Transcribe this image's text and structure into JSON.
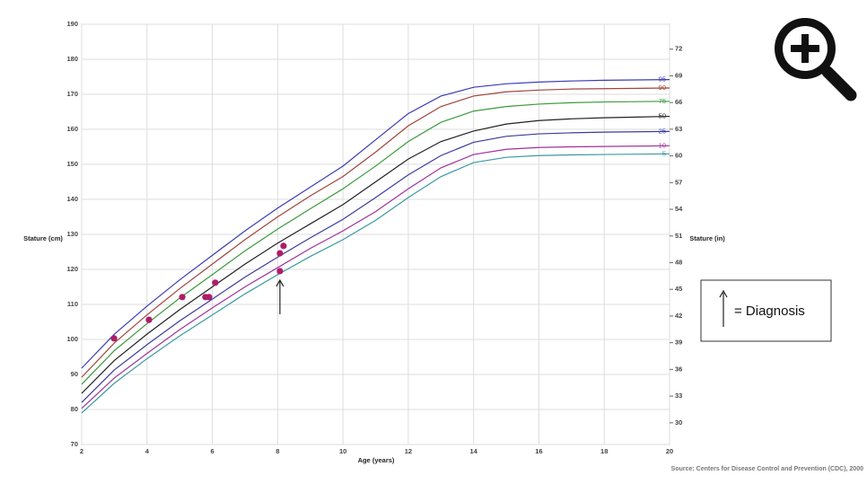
{
  "chart_data": {
    "type": "line",
    "y_label": "Stature (cm)",
    "y2_label": "Stature (in)",
    "x_label": "Age (years)",
    "xlim": [
      2,
      20
    ],
    "xticks": [
      2,
      4,
      6,
      8,
      10,
      12,
      14,
      16,
      18,
      20
    ],
    "ylim": [
      70,
      190
    ],
    "yticks": [
      70,
      80,
      90,
      100,
      110,
      120,
      130,
      140,
      150,
      160,
      170,
      180,
      190
    ],
    "y2lim": [
      27.56,
      74.8
    ],
    "y2ticks": [
      30,
      33,
      36,
      39,
      42,
      45,
      48,
      51,
      54,
      57,
      60,
      63,
      66,
      69,
      72
    ],
    "grid": true,
    "x": [
      2,
      3,
      4,
      5,
      6,
      7,
      8,
      9,
      10,
      11,
      12,
      13,
      14,
      15,
      16,
      17,
      18,
      19,
      20
    ],
    "series": [
      {
        "name": "95",
        "color": "#3b3bb8",
        "values": [
          91.8,
          101.5,
          109.5,
          117,
          124,
          131,
          137.5,
          143.5,
          149.5,
          157,
          164.5,
          169.5,
          172,
          173,
          173.5,
          173.8,
          174,
          174.1,
          174.2
        ]
      },
      {
        "name": "90",
        "color": "#a0443c",
        "values": [
          89.2,
          99,
          107,
          114.5,
          121.5,
          128.5,
          135,
          141,
          146.5,
          153.5,
          161,
          166.5,
          169.5,
          170.7,
          171.2,
          171.5,
          171.6,
          171.7,
          171.8
        ]
      },
      {
        "name": "75",
        "color": "#3c9a3c",
        "values": [
          87.2,
          96.8,
          104.5,
          111.8,
          118.5,
          125.3,
          131.5,
          137.3,
          143,
          149.5,
          156.5,
          162,
          165.2,
          166.5,
          167.2,
          167.6,
          167.8,
          167.9,
          168
        ]
      },
      {
        "name": "50",
        "color": "#222222",
        "values": [
          84.6,
          94,
          101.5,
          108.5,
          115,
          121.5,
          127.5,
          133,
          138.5,
          145,
          151.5,
          156.5,
          159.5,
          161.5,
          162.5,
          163,
          163.3,
          163.5,
          163.7
        ]
      },
      {
        "name": "25",
        "color": "#3b3b9c",
        "values": [
          82,
          91.3,
          98.5,
          105.3,
          111.5,
          117.8,
          123.5,
          129,
          134.3,
          140.5,
          147,
          152.5,
          156.3,
          158,
          158.7,
          159,
          159.2,
          159.3,
          159.4
        ]
      },
      {
        "name": "10",
        "color": "#a0329c",
        "values": [
          80.3,
          89,
          96,
          102.8,
          109,
          115,
          120.5,
          126,
          131,
          136.5,
          143,
          149,
          152.8,
          154.3,
          154.8,
          155,
          155.1,
          155.2,
          155.3
        ]
      },
      {
        "name": "5",
        "color": "#3a9aa0",
        "values": [
          79,
          87.5,
          94.5,
          101,
          107,
          113,
          118.5,
          123.7,
          128.5,
          134,
          140.5,
          146.5,
          150.5,
          152,
          152.5,
          152.7,
          152.8,
          152.9,
          153
        ]
      }
    ],
    "points": {
      "color": "#b01c6a",
      "x": [
        2.99,
        4.06,
        5.08,
        5.79,
        5.9,
        6.09,
        8.07,
        8.18,
        8.07
      ],
      "values": [
        100.3,
        105.6,
        112.1,
        112.1,
        112.1,
        116.2,
        124.6,
        126.7,
        119.5
      ],
      "arrow_at": 8
    },
    "legend_text": "= Diagnosis",
    "source": "Source: Centers for Disease Control and Prevention (CDC), 2000"
  }
}
